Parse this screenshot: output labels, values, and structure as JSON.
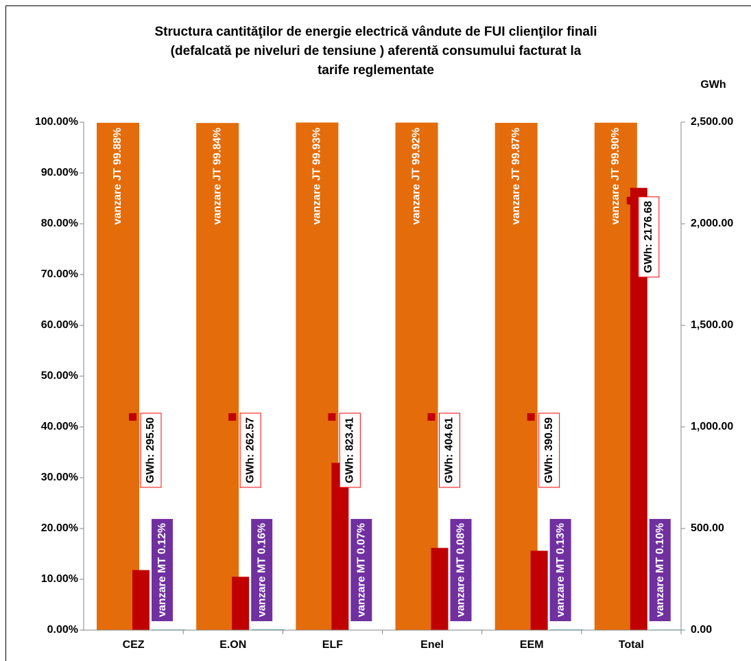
{
  "chart_data": {
    "type": "bar",
    "title": [
      "Structura cantităţilor de energie electrică vândute de FUI  clienţilor finali",
      "(defalcată pe niveluri  de  tensiune ) aferentă consumului facturat la",
      "tarife reglementate"
    ],
    "y2_label": "GWh",
    "categories": [
      "CEZ",
      "E.ON",
      "ELF",
      "Enel",
      "EEM",
      "Total"
    ],
    "series": [
      {
        "name": "vanzare JT",
        "color": "#e46c0a",
        "axis": "y",
        "values": [
          99.88,
          99.84,
          99.93,
          99.92,
          99.87,
          99.9
        ],
        "value_labels": [
          "vanzare JT 99.88%",
          "vanzare JT 99.84%",
          "vanzare JT 99.93%",
          "vanzare JT 99.92%",
          "vanzare JT 99.87%",
          "vanzare JT 99.90%"
        ]
      },
      {
        "name": "GWh",
        "color": "#c00000",
        "axis": "y2",
        "values": [
          295.5,
          262.57,
          823.41,
          404.61,
          390.59,
          2176.68
        ],
        "value_labels": [
          "GWh: 295.50",
          "GWh: 262.57",
          "GWh: 823.41",
          "GWh: 404.61",
          "GWh: 390.59",
          "GWh: 2176.68"
        ]
      },
      {
        "name": "vanzare MT",
        "color": "#4bacc6",
        "axis": "y",
        "values": [
          0.12,
          0.16,
          0.07,
          0.08,
          0.13,
          0.1
        ],
        "value_labels": [
          "vanzare MT 0.12%",
          "vanzare MT 0.16%",
          "vanzare MT 0.07%",
          "vanzare MT 0.08%",
          "vanzare MT 0.13%",
          "vanzare MT 0.10%"
        ]
      }
    ],
    "ylim": [
      0,
      100
    ],
    "yticks": [
      {
        "value": 0,
        "label": "0.00%"
      },
      {
        "value": 10,
        "label": "10.00%"
      },
      {
        "value": 20,
        "label": "20.00%"
      },
      {
        "value": 30,
        "label": "30.00%"
      },
      {
        "value": 40,
        "label": "40.00%"
      },
      {
        "value": 50,
        "label": "50.00%"
      },
      {
        "value": 60,
        "label": "60.00%"
      },
      {
        "value": 70,
        "label": "70.00%"
      },
      {
        "value": 80,
        "label": "80.00%"
      },
      {
        "value": 90,
        "label": "90.00%"
      },
      {
        "value": 100,
        "label": "100.00%"
      }
    ],
    "y2lim": [
      0,
      2500
    ],
    "y2ticks": [
      {
        "value": 0,
        "label": "0.00"
      },
      {
        "value": 500,
        "label": "500.00"
      },
      {
        "value": 1000,
        "label": "1,000.00"
      },
      {
        "value": 1500,
        "label": "1,500.00"
      },
      {
        "value": 2000,
        "label": "2,000.00"
      },
      {
        "value": 2500,
        "label": "2,500.00"
      }
    ]
  }
}
